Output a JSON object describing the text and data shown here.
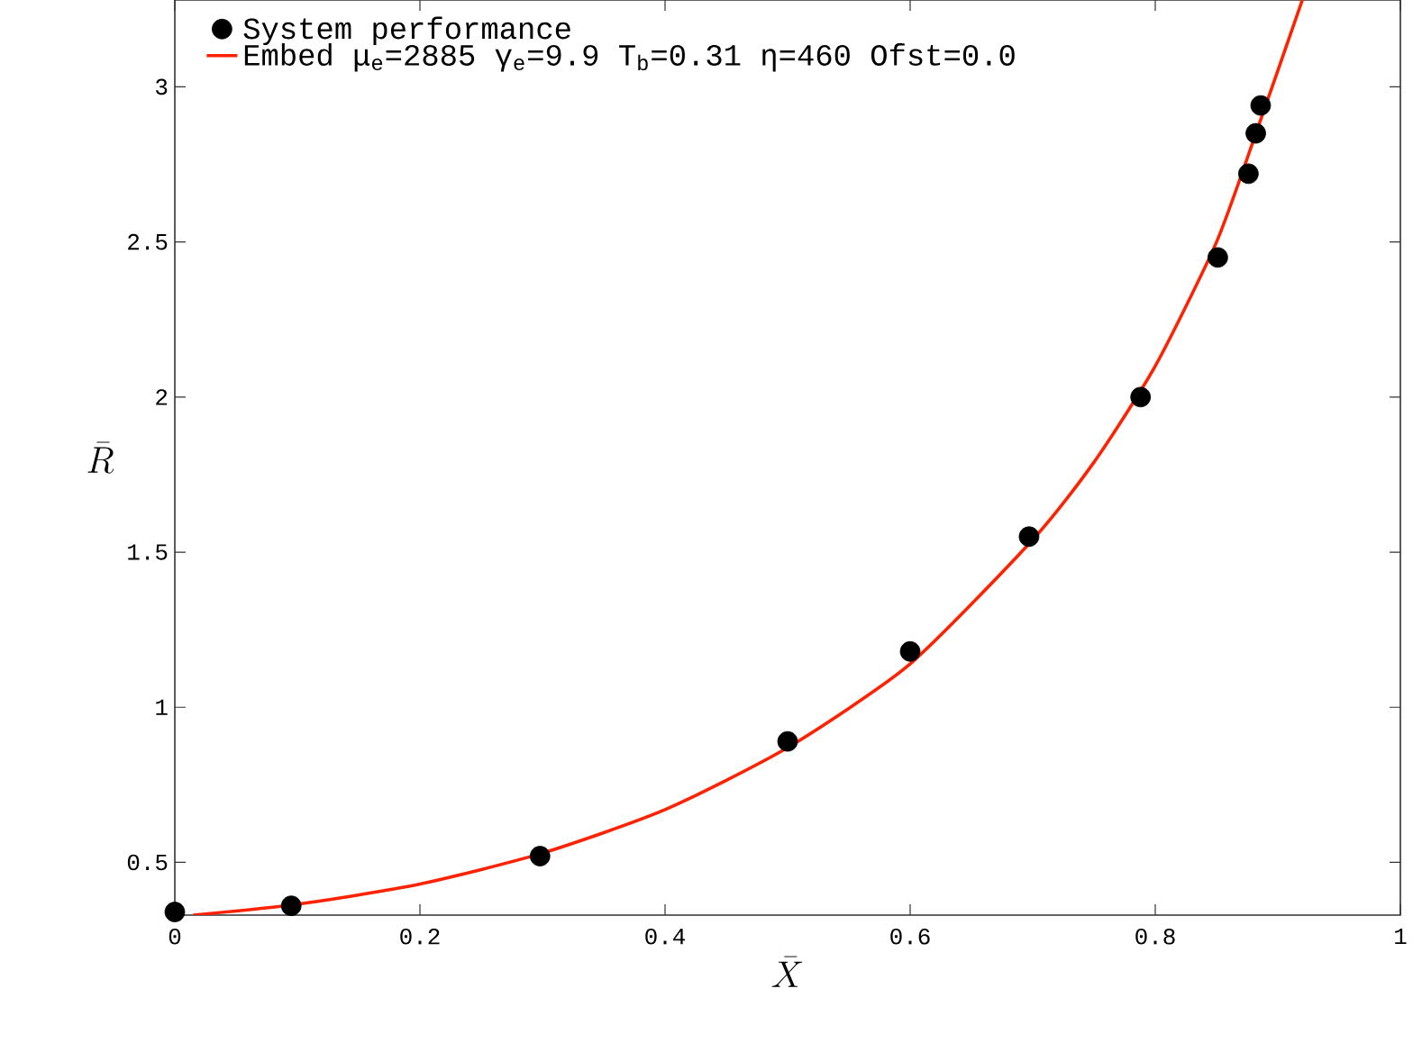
{
  "chart_data": {
    "type": "scatter",
    "xlabel": "\\bar{X}",
    "ylabel": "\\bar{R}",
    "xlim": [
      0,
      1
    ],
    "ylim": [
      0.33,
      3.28
    ],
    "xticks": [
      0,
      0.2,
      0.4,
      0.6,
      0.8,
      1
    ],
    "yticks": [
      0.5,
      1,
      1.5,
      2,
      2.5,
      3
    ],
    "grid": false,
    "legend": "top left",
    "marker": "circle",
    "series": [
      {
        "name": "System performance",
        "color": "#000000",
        "x": [
          0,
          0.095,
          0.298,
          0.5,
          0.6,
          0.697,
          0.788,
          0.851,
          0.876,
          0.882,
          0.886
        ],
        "values": [
          0.34,
          0.36,
          0.52,
          0.89,
          1.18,
          1.55,
          2.0,
          2.45,
          2.72,
          2.85,
          2.94
        ]
      },
      {
        "name": "Embed μ$_{e}$=2885 γ$_{e}$=9.9 T$_{b}$=0.31 η=460 Ofst=0.0",
        "type": "line",
        "color": "#ff2200",
        "marker": "none",
        "line_style": "solid",
        "x": [
          0.015,
          0.1,
          0.2,
          0.3,
          0.4,
          0.5,
          0.6,
          0.7,
          0.75,
          0.8,
          0.85,
          0.883,
          0.92
        ],
        "values": [
          0.33,
          0.365,
          0.43,
          0.53,
          0.67,
          0.87,
          1.14,
          1.54,
          1.79,
          2.1,
          2.5,
          2.86,
          3.28
        ]
      }
    ]
  }
}
